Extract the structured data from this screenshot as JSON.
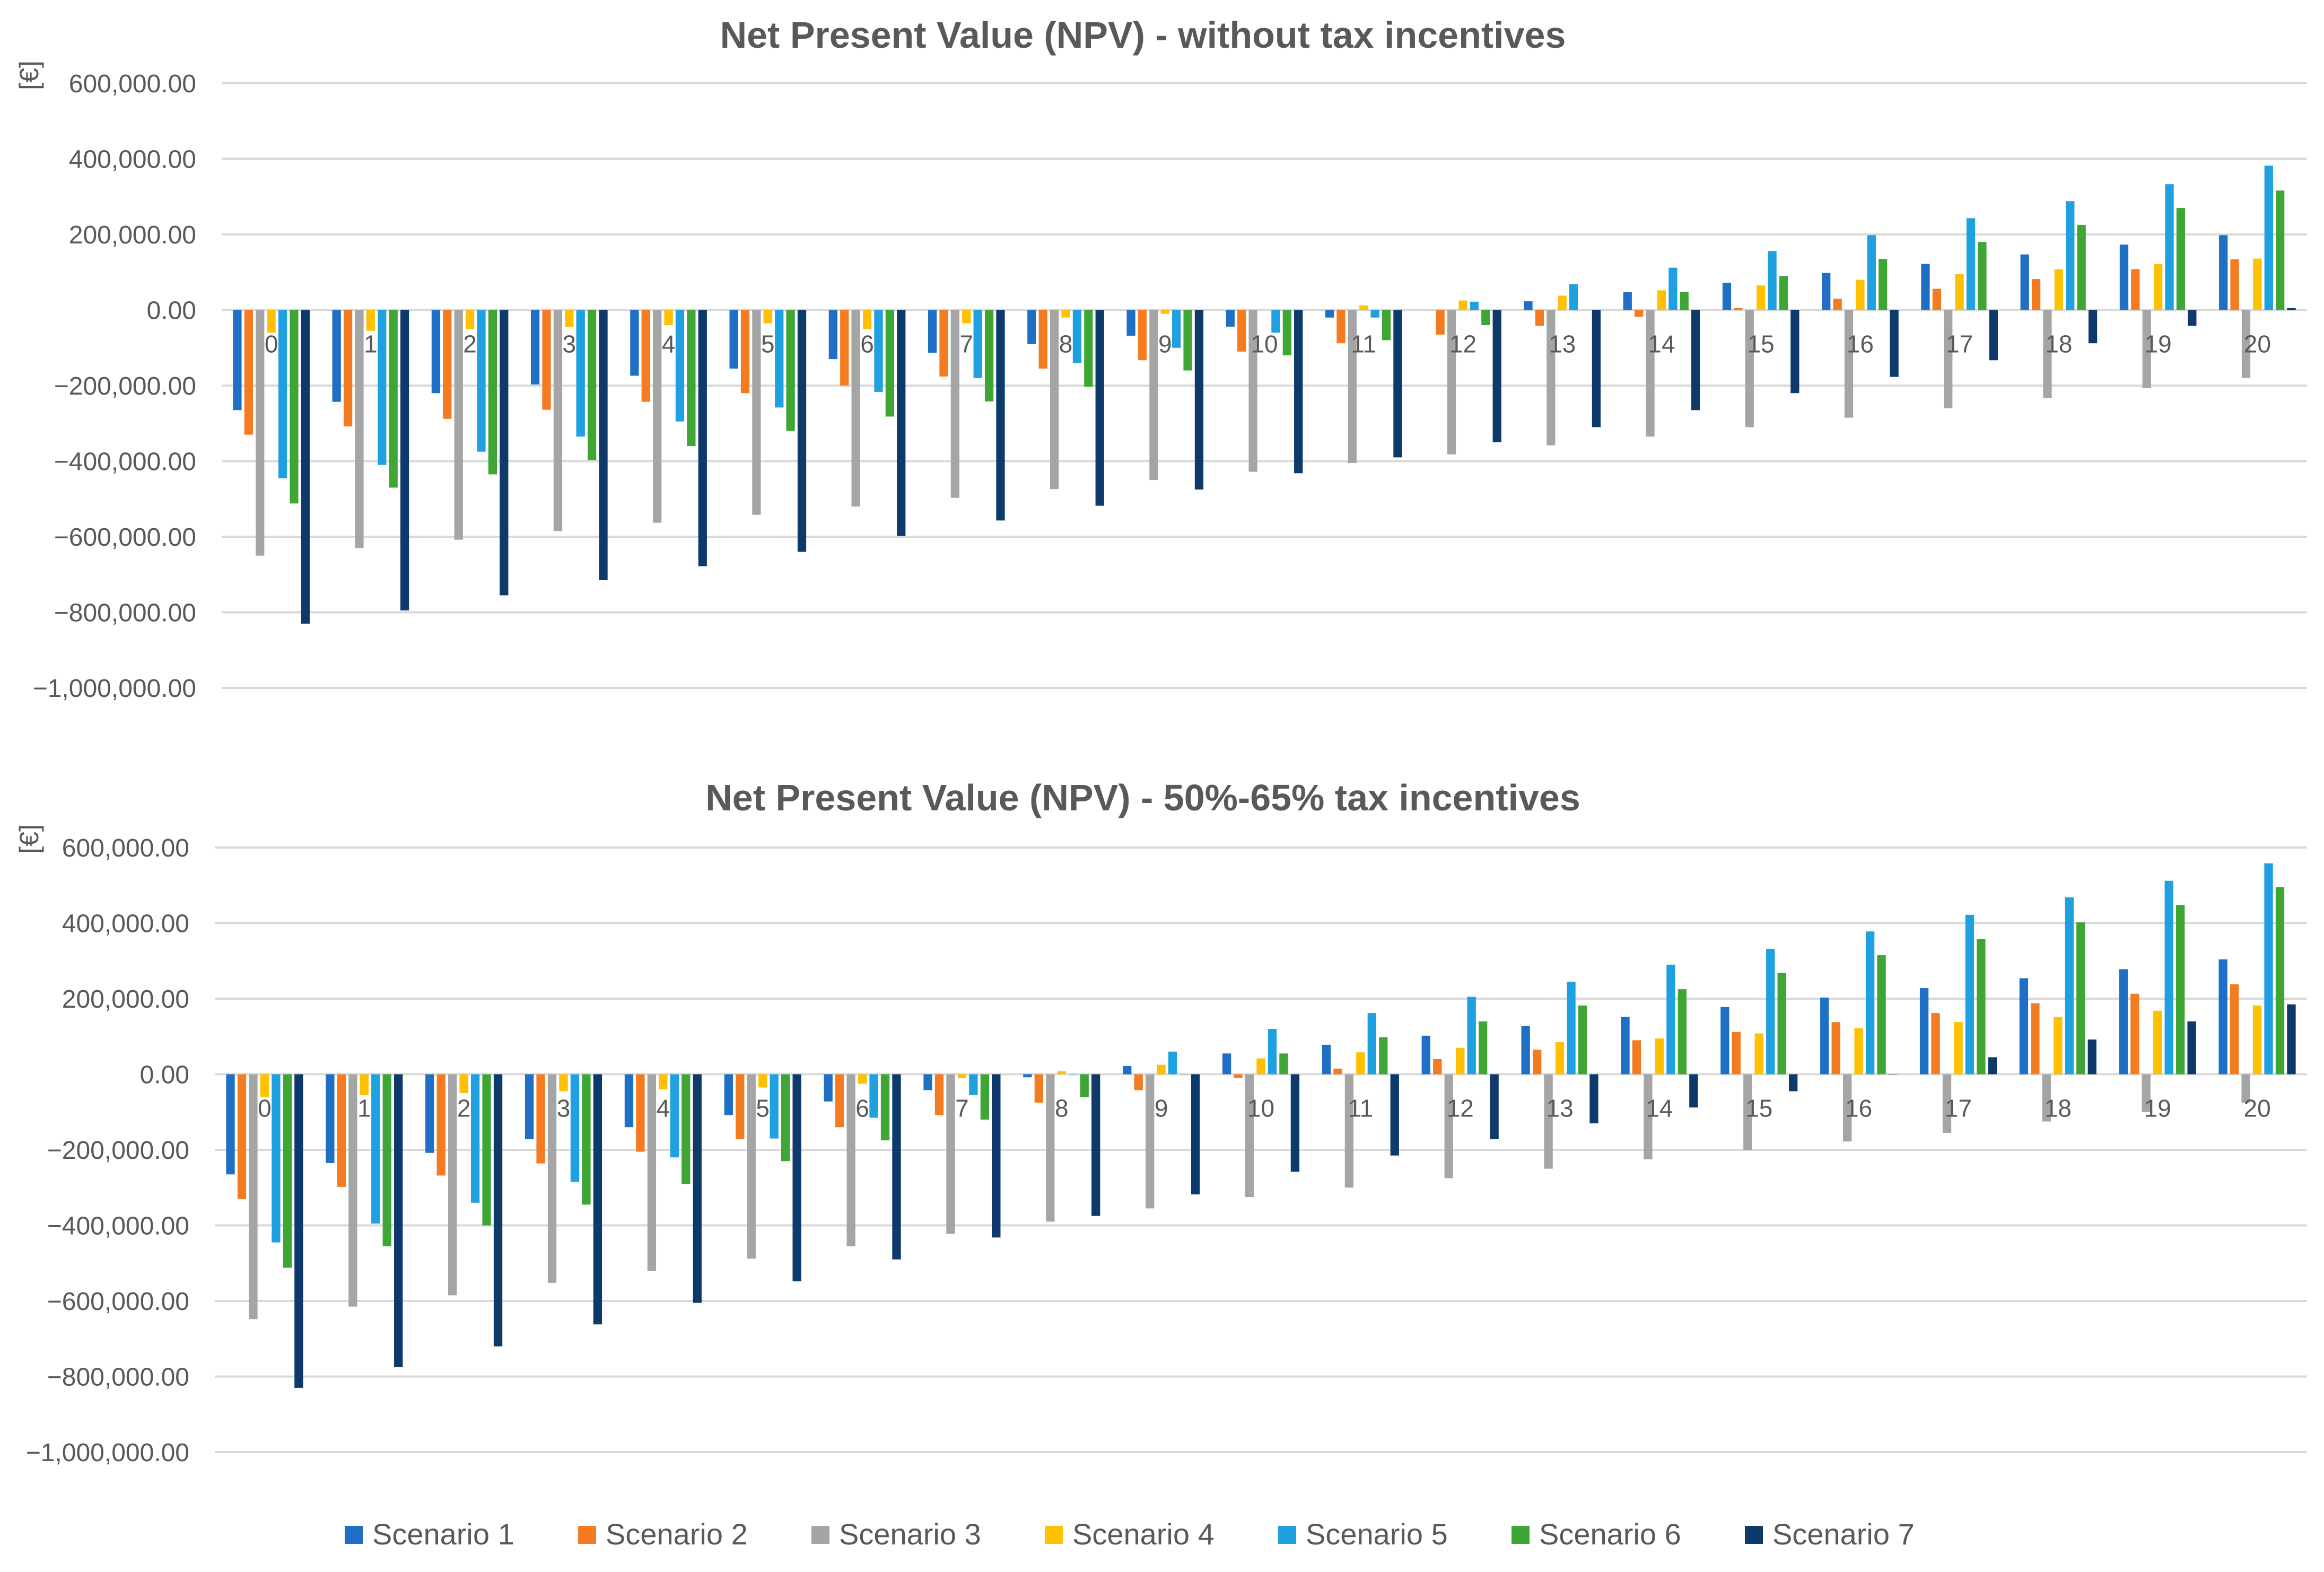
{
  "colors": {
    "Scenario 1": "#1F6FC5",
    "Scenario 2": "#F47B20",
    "Scenario 3": "#A5A5A5",
    "Scenario 4": "#FFC000",
    "Scenario 5": "#1FA0E0",
    "Scenario 6": "#3FA535",
    "Scenario 7": "#0E3A6B",
    "grid": "#D9D9D9",
    "text": "#595959"
  },
  "legend": [
    "Scenario 1",
    "Scenario 2",
    "Scenario 3",
    "Scenario 4",
    "Scenario 5",
    "Scenario 6",
    "Scenario 7"
  ],
  "chart_data": [
    {
      "type": "bar",
      "title": "Net Present Value (NPV) - without tax incentives",
      "ylabel": "[€]",
      "xlabel": "",
      "ylim": [
        -1000000,
        600000
      ],
      "yticks": [
        600000,
        400000,
        200000,
        0,
        -200000,
        -400000,
        -600000,
        -800000,
        -1000000
      ],
      "ytick_labels": [
        "600,000.00",
        "400,000.00",
        "200,000.00",
        "0.00",
        "-200,000.00",
        "-400,000.00",
        "-600,000.00",
        "-800,000.00",
        "-1,000,000.00"
      ],
      "categories": [
        "0",
        "1",
        "2",
        "3",
        "4",
        "5",
        "6",
        "7",
        "8",
        "9",
        "10",
        "11",
        "12",
        "13",
        "14",
        "15",
        "16",
        "17",
        "18",
        "19",
        "20"
      ],
      "series": [
        {
          "name": "Scenario 1",
          "values": [
            -265000,
            -243000,
            -220000,
            -197000,
            -174000,
            -155000,
            -130000,
            -113000,
            -90000,
            -68000,
            -44000,
            -20000,
            0,
            23000,
            47000,
            72000,
            98000,
            122000,
            147000,
            173000,
            198000
          ]
        },
        {
          "name": "Scenario 2",
          "values": [
            -330000,
            -308000,
            -288000,
            -264000,
            -243000,
            -220000,
            -200000,
            -176000,
            -155000,
            -133000,
            -110000,
            -88000,
            -65000,
            -42000,
            -18000,
            5000,
            30000,
            56000,
            82000,
            108000,
            134000
          ]
        },
        {
          "name": "Scenario 3",
          "values": [
            -650000,
            -630000,
            -608000,
            -585000,
            -563000,
            -542000,
            -520000,
            -497000,
            -474000,
            -450000,
            -428000,
            -405000,
            -382000,
            -358000,
            -335000,
            -310000,
            -285000,
            -260000,
            -233000,
            -207000,
            -180000
          ]
        },
        {
          "name": "Scenario 4",
          "values": [
            -60000,
            -55000,
            -50000,
            -45000,
            -40000,
            -35000,
            -50000,
            -35000,
            -20000,
            -10000,
            0,
            12000,
            25000,
            38000,
            52000,
            65000,
            80000,
            95000,
            108000,
            122000,
            136000
          ]
        },
        {
          "name": "Scenario 5",
          "values": [
            -445000,
            -410000,
            -375000,
            -335000,
            -295000,
            -258000,
            -217000,
            -180000,
            -140000,
            -100000,
            -60000,
            -20000,
            22000,
            68000,
            112000,
            156000,
            198000,
            243000,
            288000,
            333000,
            382000
          ]
        },
        {
          "name": "Scenario 6",
          "values": [
            -512000,
            -470000,
            -435000,
            -397000,
            -360000,
            -320000,
            -282000,
            -242000,
            -203000,
            -160000,
            -120000,
            -80000,
            -40000,
            0,
            48000,
            90000,
            135000,
            180000,
            225000,
            270000,
            316000
          ]
        },
        {
          "name": "Scenario 7",
          "values": [
            -830000,
            -795000,
            -755000,
            -715000,
            -678000,
            -640000,
            -598000,
            -557000,
            -518000,
            -475000,
            -432000,
            -390000,
            -350000,
            -310000,
            -265000,
            -220000,
            -177000,
            -133000,
            -88000,
            -42000,
            5000
          ]
        }
      ]
    },
    {
      "type": "bar",
      "title": "Net Present Value (NPV) - 50%-65% tax incentives",
      "ylabel": "[€]",
      "xlabel": "",
      "ylim": [
        -1000000,
        600000
      ],
      "yticks": [
        600000,
        400000,
        200000,
        0,
        -200000,
        -400000,
        -600000,
        -800000,
        -1000000
      ],
      "ytick_labels": [
        "600,000.00",
        "400,000.00",
        "200,000.00",
        "0.00",
        "-200,000.00",
        "-400,000.00",
        "-600,000.00",
        "-800,000.00",
        "-1,000,000.00"
      ],
      "categories": [
        "0",
        "1",
        "2",
        "3",
        "4",
        "5",
        "6",
        "7",
        "8",
        "9",
        "10",
        "11",
        "12",
        "13",
        "14",
        "15",
        "16",
        "17",
        "18",
        "19",
        "20"
      ],
      "series": [
        {
          "name": "Scenario 1",
          "values": [
            -265000,
            -235000,
            -208000,
            -172000,
            -140000,
            -108000,
            -72000,
            -42000,
            -8000,
            22000,
            55000,
            78000,
            102000,
            128000,
            152000,
            178000,
            203000,
            228000,
            254000,
            278000,
            304000
          ]
        },
        {
          "name": "Scenario 2",
          "values": [
            -330000,
            -298000,
            -268000,
            -236000,
            -205000,
            -172000,
            -140000,
            -108000,
            -75000,
            -42000,
            -10000,
            15000,
            40000,
            65000,
            90000,
            112000,
            138000,
            162000,
            188000,
            213000,
            238000
          ]
        },
        {
          "name": "Scenario 3",
          "values": [
            -648000,
            -615000,
            -585000,
            -552000,
            -520000,
            -488000,
            -455000,
            -422000,
            -390000,
            -355000,
            -325000,
            -300000,
            -275000,
            -250000,
            -225000,
            -200000,
            -178000,
            -155000,
            -125000,
            -100000,
            -75000
          ]
        },
        {
          "name": "Scenario 4",
          "values": [
            -60000,
            -55000,
            -50000,
            -45000,
            -40000,
            -35000,
            -25000,
            -10000,
            8000,
            25000,
            42000,
            58000,
            70000,
            85000,
            95000,
            108000,
            122000,
            138000,
            152000,
            168000,
            182000
          ]
        },
        {
          "name": "Scenario 5",
          "values": [
            -445000,
            -395000,
            -340000,
            -285000,
            -220000,
            -170000,
            -115000,
            -55000,
            0,
            60000,
            120000,
            162000,
            205000,
            245000,
            290000,
            332000,
            378000,
            422000,
            468000,
            512000,
            558000
          ]
        },
        {
          "name": "Scenario 6",
          "values": [
            -512000,
            -455000,
            -400000,
            -345000,
            -290000,
            -230000,
            -175000,
            -120000,
            -60000,
            0,
            55000,
            98000,
            140000,
            182000,
            225000,
            268000,
            315000,
            358000,
            402000,
            448000,
            495000
          ]
        },
        {
          "name": "Scenario 7",
          "values": [
            -830000,
            -775000,
            -720000,
            -662000,
            -605000,
            -548000,
            -490000,
            -432000,
            -375000,
            -318000,
            -258000,
            -215000,
            -172000,
            -130000,
            -88000,
            -45000,
            0,
            45000,
            92000,
            140000,
            185000
          ]
        }
      ]
    }
  ]
}
